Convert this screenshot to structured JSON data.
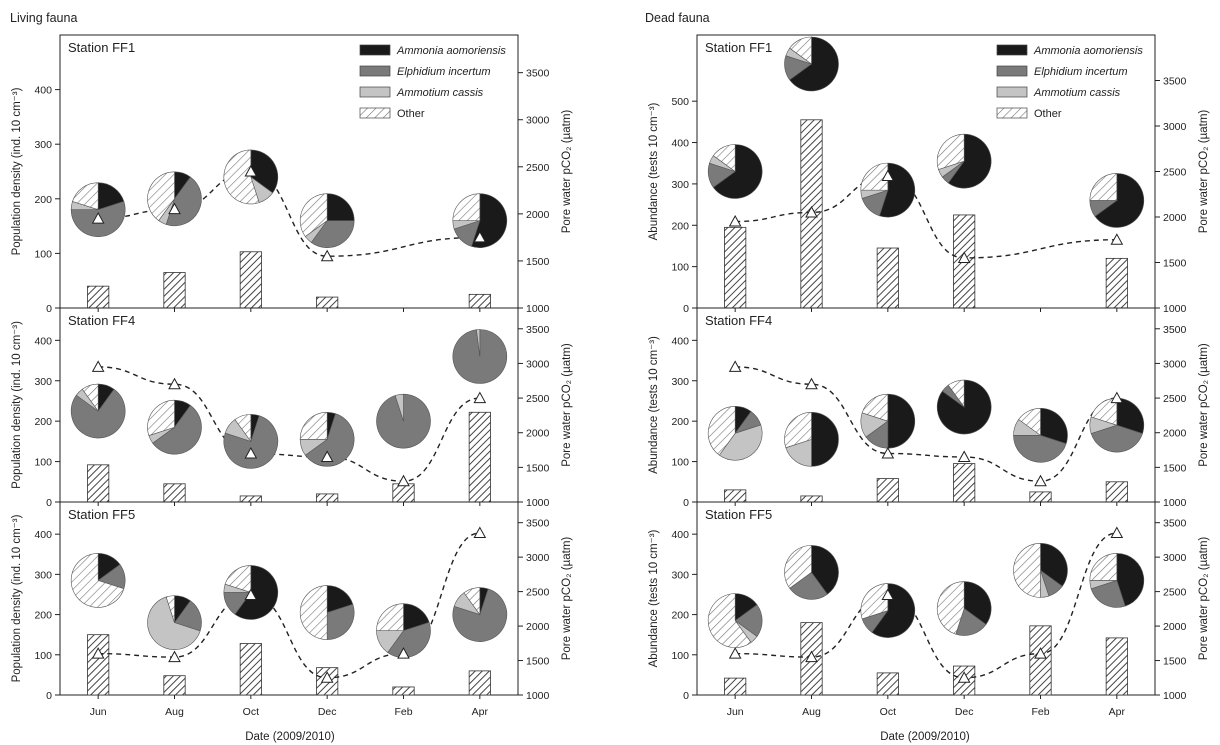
{
  "chart_data": [
    {
      "type": "bar",
      "panel_group": "Living fauna",
      "station": "Station FF1",
      "categories": [
        "Jun",
        "Aug",
        "Oct",
        "Dec",
        "Feb",
        "Apr"
      ],
      "bar_series": {
        "values": [
          40,
          65,
          103,
          20,
          null,
          25
        ],
        "pattern": "hatched"
      },
      "line_series": {
        "axis": "right",
        "style": "dashed",
        "marker": "triangle",
        "values": [
          1950,
          2050,
          2450,
          1550,
          null,
          1750
        ]
      },
      "pies": [
        {
          "category": "Jun",
          "y": 180,
          "fractions": {
            "Ammonia aomoriensis": 0.2,
            "Elphidium incertum": 0.55,
            "Ammotium cassis": 0.05,
            "Other": 0.2
          }
        },
        {
          "category": "Aug",
          "y": 200,
          "fractions": {
            "Ammonia aomoriensis": 0.1,
            "Elphidium incertum": 0.45,
            "Ammotium cassis": 0.05,
            "Other": 0.4
          }
        },
        {
          "category": "Oct",
          "y": 240,
          "fractions": {
            "Ammonia aomoriensis": 0.35,
            "Elphidium incertum": 0.0,
            "Ammotium cassis": 0.1,
            "Other": 0.55
          }
        },
        {
          "category": "Dec",
          "y": 160,
          "fractions": {
            "Ammonia aomoriensis": 0.25,
            "Elphidium incertum": 0.35,
            "Ammotium cassis": 0.05,
            "Other": 0.35
          }
        },
        {
          "category": "Apr",
          "y": 160,
          "fractions": {
            "Ammonia aomoriensis": 0.55,
            "Elphidium incertum": 0.15,
            "Ammotium cassis": 0.05,
            "Other": 0.25
          }
        }
      ],
      "ylim": [
        0,
        500
      ],
      "yticks": [
        0,
        100,
        200,
        300,
        400
      ],
      "y2lim": [
        1000,
        3900
      ],
      "y2ticks": [
        1000,
        1500,
        2000,
        2500,
        3000,
        3500
      ]
    },
    {
      "type": "bar",
      "panel_group": "Living fauna",
      "station": "Station FF4",
      "categories": [
        "Jun",
        "Aug",
        "Oct",
        "Dec",
        "Feb",
        "Apr"
      ],
      "bar_series": {
        "values": [
          92,
          45,
          15,
          20,
          45,
          222
        ],
        "pattern": "hatched"
      },
      "line_series": {
        "axis": "right",
        "style": "dashed",
        "marker": "triangle",
        "values": [
          2950,
          2700,
          1700,
          1650,
          1300,
          2500
        ]
      },
      "pies": [
        {
          "category": "Jun",
          "y": 225,
          "fractions": {
            "Ammonia aomoriensis": 0.1,
            "Elphidium incertum": 0.75,
            "Ammotium cassis": 0.05,
            "Other": 0.1
          }
        },
        {
          "category": "Aug",
          "y": 185,
          "fractions": {
            "Ammonia aomoriensis": 0.1,
            "Elphidium incertum": 0.55,
            "Ammotium cassis": 0.05,
            "Other": 0.3
          }
        },
        {
          "category": "Oct",
          "y": 150,
          "fractions": {
            "Ammonia aomoriensis": 0.05,
            "Elphidium incertum": 0.75,
            "Ammotium cassis": 0.1,
            "Other": 0.1
          }
        },
        {
          "category": "Dec",
          "y": 155,
          "fractions": {
            "Ammonia aomoriensis": 0.05,
            "Elphidium incertum": 0.6,
            "Ammotium cassis": 0.1,
            "Other": 0.25
          }
        },
        {
          "category": "Feb",
          "y": 200,
          "fractions": {
            "Ammonia aomoriensis": 0.0,
            "Elphidium incertum": 0.95,
            "Ammotium cassis": 0.05,
            "Other": 0.0
          }
        },
        {
          "category": "Apr",
          "y": 360,
          "fractions": {
            "Ammonia aomoriensis": 0.0,
            "Elphidium incertum": 0.98,
            "Ammotium cassis": 0.02,
            "Other": 0.0
          }
        }
      ],
      "ylim": [
        0,
        480
      ],
      "yticks": [
        0,
        100,
        200,
        300,
        400
      ],
      "y2lim": [
        1000,
        3800
      ],
      "y2ticks": [
        1000,
        1500,
        2000,
        2500,
        3000,
        3500
      ]
    },
    {
      "type": "bar",
      "panel_group": "Living fauna",
      "station": "Station FF5",
      "categories": [
        "Jun",
        "Aug",
        "Oct",
        "Dec",
        "Feb",
        "Apr"
      ],
      "bar_series": {
        "values": [
          150,
          48,
          128,
          68,
          20,
          60
        ],
        "pattern": "hatched"
      },
      "line_series": {
        "axis": "right",
        "style": "dashed",
        "marker": "triangle",
        "values": [
          1600,
          1550,
          2450,
          1250,
          1600,
          3350
        ]
      },
      "pies": [
        {
          "category": "Jun",
          "y": 285,
          "fractions": {
            "Ammonia aomoriensis": 0.15,
            "Elphidium incertum": 0.15,
            "Ammotium cassis": 0.0,
            "Other": 0.7
          }
        },
        {
          "category": "Aug",
          "y": 180,
          "fractions": {
            "Ammonia aomoriensis": 0.1,
            "Elphidium incertum": 0.2,
            "Ammotium cassis": 0.65,
            "Other": 0.05
          }
        },
        {
          "category": "Oct",
          "y": 255,
          "fractions": {
            "Ammonia aomoriensis": 0.6,
            "Elphidium incertum": 0.15,
            "Ammotium cassis": 0.05,
            "Other": 0.2
          }
        },
        {
          "category": "Dec",
          "y": 205,
          "fractions": {
            "Ammonia aomoriensis": 0.2,
            "Elphidium incertum": 0.3,
            "Ammotium cassis": 0.0,
            "Other": 0.5
          }
        },
        {
          "category": "Feb",
          "y": 160,
          "fractions": {
            "Ammonia aomoriensis": 0.2,
            "Elphidium incertum": 0.4,
            "Ammotium cassis": 0.15,
            "Other": 0.25
          }
        },
        {
          "category": "Apr",
          "y": 200,
          "fractions": {
            "Ammonia aomoriensis": 0.05,
            "Elphidium incertum": 0.75,
            "Ammotium cassis": 0.1,
            "Other": 0.1
          }
        }
      ],
      "ylim": [
        0,
        480
      ],
      "yticks": [
        0,
        100,
        200,
        300,
        400
      ],
      "y2lim": [
        1000,
        3800
      ],
      "y2ticks": [
        1000,
        1500,
        2000,
        2500,
        3000,
        3500
      ]
    },
    {
      "type": "bar",
      "panel_group": "Dead fauna",
      "station": "Station FF1",
      "categories": [
        "Jun",
        "Aug",
        "Oct",
        "Dec",
        "Feb",
        "Apr"
      ],
      "bar_series": {
        "values": [
          195,
          455,
          145,
          225,
          null,
          120
        ],
        "pattern": "hatched"
      },
      "line_series": {
        "axis": "right",
        "style": "dashed",
        "marker": "triangle",
        "values": [
          1950,
          2050,
          2450,
          1550,
          null,
          1750
        ]
      },
      "pies": [
        {
          "category": "Jun",
          "y": 330,
          "fractions": {
            "Ammonia aomoriensis": 0.65,
            "Elphidium incertum": 0.15,
            "Ammotium cassis": 0.05,
            "Other": 0.15
          }
        },
        {
          "category": "Aug",
          "y": 590,
          "fractions": {
            "Ammonia aomoriensis": 0.65,
            "Elphidium incertum": 0.15,
            "Ammotium cassis": 0.05,
            "Other": 0.15
          }
        },
        {
          "category": "Oct",
          "y": 285,
          "fractions": {
            "Ammonia aomoriensis": 0.55,
            "Elphidium incertum": 0.15,
            "Ammotium cassis": 0.05,
            "Other": 0.25
          }
        },
        {
          "category": "Dec",
          "y": 355,
          "fractions": {
            "Ammonia aomoriensis": 0.6,
            "Elphidium incertum": 0.05,
            "Ammotium cassis": 0.05,
            "Other": 0.3
          }
        },
        {
          "category": "Apr",
          "y": 260,
          "fractions": {
            "Ammonia aomoriensis": 0.65,
            "Elphidium incertum": 0.1,
            "Ammotium cassis": 0.0,
            "Other": 0.25
          }
        }
      ],
      "ylim": [
        0,
        660
      ],
      "yticks": [
        0,
        100,
        200,
        300,
        400,
        500
      ],
      "y2lim": [
        1000,
        4000
      ],
      "y2ticks": [
        1000,
        1500,
        2000,
        2500,
        3000,
        3500
      ]
    },
    {
      "type": "bar",
      "panel_group": "Dead fauna",
      "station": "Station FF4",
      "categories": [
        "Jun",
        "Aug",
        "Oct",
        "Dec",
        "Feb",
        "Apr"
      ],
      "bar_series": {
        "values": [
          30,
          15,
          58,
          95,
          25,
          50
        ],
        "pattern": "hatched"
      },
      "line_series": {
        "axis": "right",
        "style": "dashed",
        "marker": "triangle",
        "values": [
          2950,
          2700,
          1700,
          1650,
          1300,
          2500
        ]
      },
      "pies": [
        {
          "category": "Jun",
          "y": 170,
          "fractions": {
            "Ammonia aomoriensis": 0.1,
            "Elphidium incertum": 0.1,
            "Ammotium cassis": 0.4,
            "Other": 0.4
          }
        },
        {
          "category": "Aug",
          "y": 155,
          "fractions": {
            "Ammonia aomoriensis": 0.5,
            "Elphidium incertum": 0.0,
            "Ammotium cassis": 0.2,
            "Other": 0.3
          }
        },
        {
          "category": "Oct",
          "y": 200,
          "fractions": {
            "Ammonia aomoriensis": 0.5,
            "Elphidium incertum": 0.15,
            "Ammotium cassis": 0.15,
            "Other": 0.2
          }
        },
        {
          "category": "Dec",
          "y": 235,
          "fractions": {
            "Ammonia aomoriensis": 0.85,
            "Elphidium incertum": 0.05,
            "Ammotium cassis": 0.0,
            "Other": 0.1
          }
        },
        {
          "category": "Feb",
          "y": 165,
          "fractions": {
            "Ammonia aomoriensis": 0.3,
            "Elphidium incertum": 0.45,
            "Ammotium cassis": 0.1,
            "Other": 0.15
          }
        },
        {
          "category": "Apr",
          "y": 190,
          "fractions": {
            "Ammonia aomoriensis": 0.3,
            "Elphidium incertum": 0.4,
            "Ammotium cassis": 0.1,
            "Other": 0.2
          }
        }
      ],
      "ylim": [
        0,
        480
      ],
      "yticks": [
        0,
        100,
        200,
        300,
        400
      ],
      "y2lim": [
        1000,
        3800
      ],
      "y2ticks": [
        1000,
        1500,
        2000,
        2500,
        3000,
        3500
      ]
    },
    {
      "type": "bar",
      "panel_group": "Dead fauna",
      "station": "Station FF5",
      "categories": [
        "Jun",
        "Aug",
        "Oct",
        "Dec",
        "Feb",
        "Apr"
      ],
      "bar_series": {
        "values": [
          42,
          180,
          55,
          72,
          172,
          142
        ],
        "pattern": "hatched"
      },
      "line_series": {
        "axis": "right",
        "style": "dashed",
        "marker": "triangle",
        "values": [
          1600,
          1550,
          2450,
          1250,
          1600,
          3350
        ]
      },
      "pies": [
        {
          "category": "Jun",
          "y": 185,
          "fractions": {
            "Ammonia aomoriensis": 0.15,
            "Elphidium incertum": 0.2,
            "Ammotium cassis": 0.05,
            "Other": 0.6
          }
        },
        {
          "category": "Aug",
          "y": 305,
          "fractions": {
            "Ammonia aomoriensis": 0.4,
            "Elphidium incertum": 0.25,
            "Ammotium cassis": 0.0,
            "Other": 0.35
          }
        },
        {
          "category": "Oct",
          "y": 210,
          "fractions": {
            "Ammonia aomoriensis": 0.6,
            "Elphidium incertum": 0.1,
            "Ammotium cassis": 0.0,
            "Other": 0.3
          }
        },
        {
          "category": "Dec",
          "y": 215,
          "fractions": {
            "Ammonia aomoriensis": 0.35,
            "Elphidium incertum": 0.2,
            "Ammotium cassis": 0.0,
            "Other": 0.45
          }
        },
        {
          "category": "Feb",
          "y": 310,
          "fractions": {
            "Ammonia aomoriensis": 0.35,
            "Elphidium incertum": 0.1,
            "Ammotium cassis": 0.05,
            "Other": 0.5
          }
        },
        {
          "category": "Apr",
          "y": 285,
          "fractions": {
            "Ammonia aomoriensis": 0.45,
            "Elphidium incertum": 0.25,
            "Ammotium cassis": 0.05,
            "Other": 0.25
          }
        }
      ],
      "ylim": [
        0,
        480
      ],
      "yticks": [
        0,
        100,
        200,
        300,
        400
      ],
      "y2lim": [
        1000,
        3800
      ],
      "y2ticks": [
        1000,
        1500,
        2000,
        2500,
        3000,
        3500
      ]
    }
  ],
  "figure": {
    "left_title": "Living fauna",
    "right_title": "Dead fauna",
    "xlabel": "Date (2009/2010)",
    "left_ylabel": "Population density (ind. 10 cm⁻³)",
    "right_ylabel_abundance": "Abundance (tests 10 cm⁻³)",
    "pore_ylabel": "Pore water pCO₂ (µatm)",
    "legend": [
      {
        "label": "Ammonia aomoriensis",
        "italic": true,
        "fill": "#1a1a1a"
      },
      {
        "label": "Elphidium incertum",
        "italic": true,
        "fill": "#7a7a7a"
      },
      {
        "label": "Ammotium cassis",
        "italic": true,
        "fill": "#c4c4c4"
      },
      {
        "label": "Other",
        "italic": false,
        "fill": "hatch"
      }
    ],
    "colors": {
      "ammonia": "#1a1a1a",
      "elphidium": "#7a7a7a",
      "ammotium": "#c4c4c4",
      "other_bg": "#ffffff",
      "hatch": "#555555"
    }
  }
}
